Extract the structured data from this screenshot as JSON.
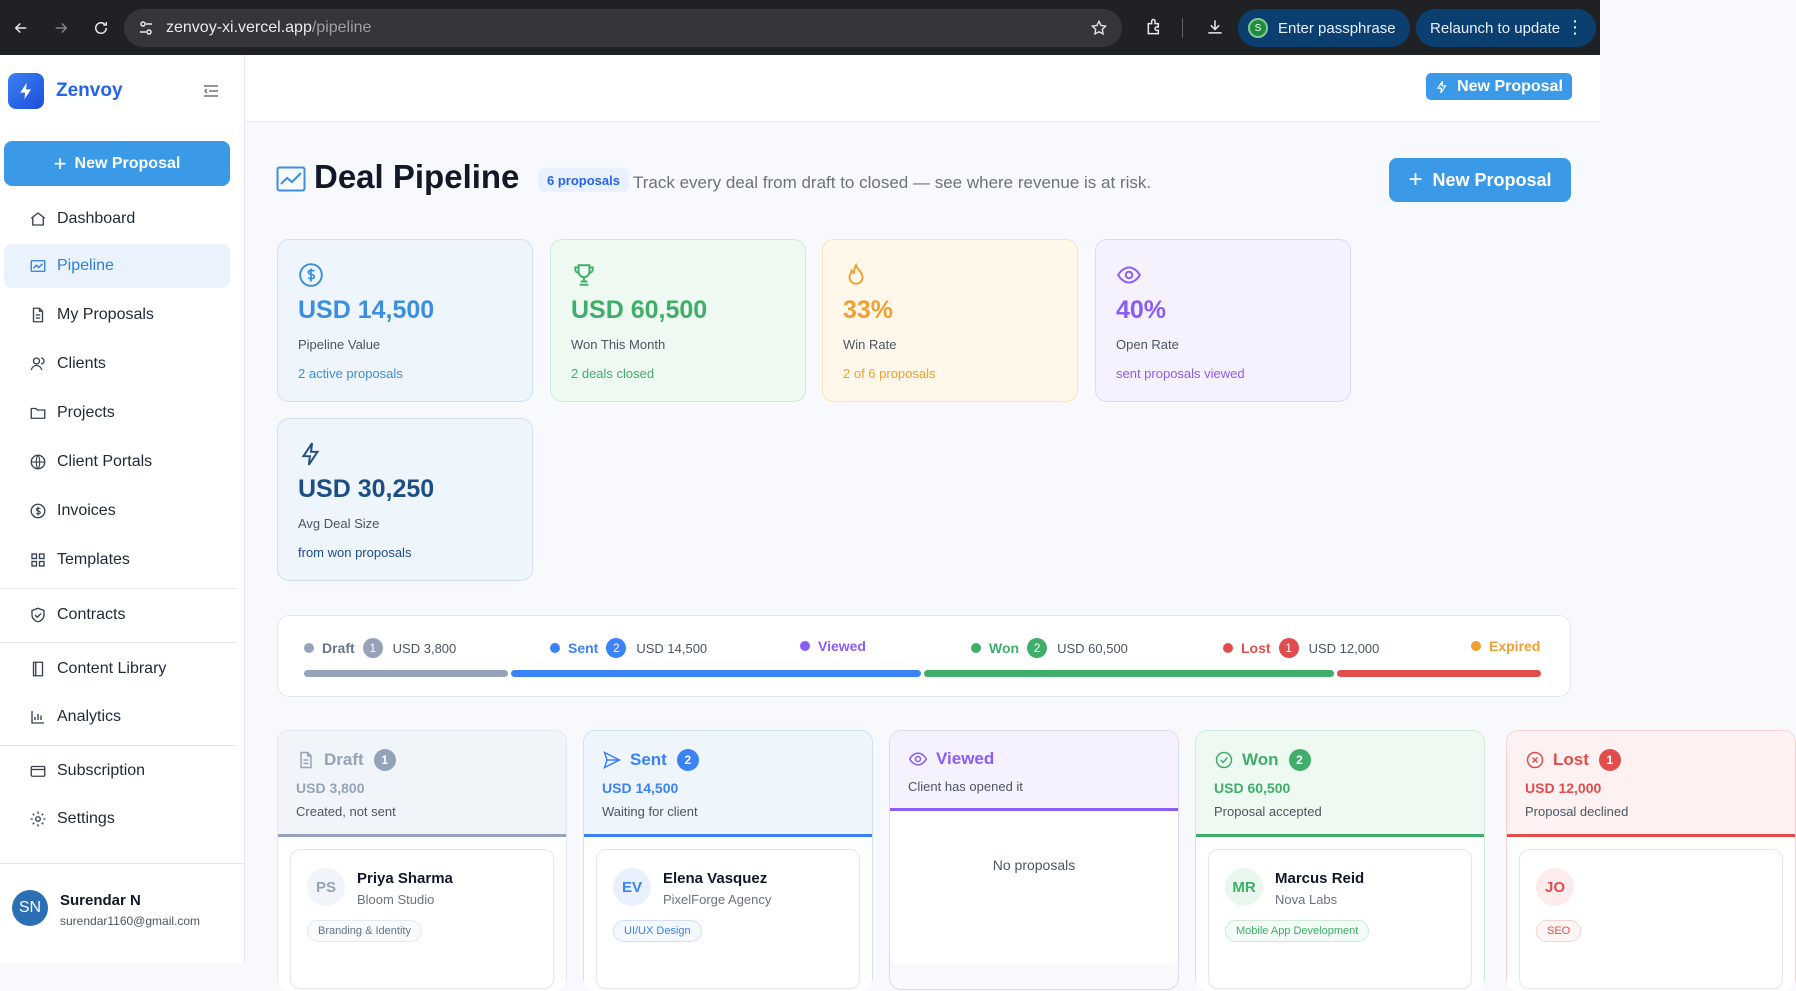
{
  "browser": {
    "url_host": "zenvoy-xi.vercel.app",
    "url_path": "/pipeline",
    "passphrase_label": "Enter passphrase",
    "passphrase_avatar": "S",
    "relaunch_label": "Relaunch to update"
  },
  "brand": {
    "name": "Zenvoy"
  },
  "sidebar": {
    "new_label": "New Proposal",
    "items": [
      {
        "label": "Dashboard",
        "icon": "home-icon"
      },
      {
        "label": "Pipeline",
        "icon": "chart-icon"
      },
      {
        "label": "My Proposals",
        "icon": "document-icon"
      },
      {
        "label": "Clients",
        "icon": "users-icon"
      },
      {
        "label": "Projects",
        "icon": "folder-icon"
      },
      {
        "label": "Client Portals",
        "icon": "globe-icon"
      },
      {
        "label": "Invoices",
        "icon": "dollar-icon"
      },
      {
        "label": "Templates",
        "icon": "grid-icon"
      },
      {
        "label": "Contracts",
        "icon": "shield-icon"
      },
      {
        "label": "Content Library",
        "icon": "book-icon"
      },
      {
        "label": "Analytics",
        "icon": "bar-chart-icon"
      },
      {
        "label": "Subscription",
        "icon": "card-icon"
      },
      {
        "label": "Settings",
        "icon": "gear-icon"
      }
    ]
  },
  "user": {
    "initials": "SN",
    "name": "Surendar N",
    "email": "surendar1160@gmail.com"
  },
  "topbar": {
    "new_label": "New Proposal"
  },
  "header": {
    "title": "Deal Pipeline",
    "badge": "6 proposals",
    "subtitle": "Track every deal from draft to closed — see where revenue is at risk.",
    "new_label": "New Proposal"
  },
  "stats": [
    {
      "value": "USD 14,500",
      "label": "Pipeline Value",
      "sub": "2 active proposals",
      "icon": "dollar-circle-icon",
      "color": "#3b8fe0"
    },
    {
      "value": "USD 60,500",
      "label": "Won This Month",
      "sub": "2 deals closed",
      "icon": "trophy-icon",
      "color": "#3fae6a"
    },
    {
      "value": "33%",
      "label": "Win Rate",
      "sub": "2 of 6 proposals",
      "icon": "flame-icon",
      "color": "#f0a030"
    },
    {
      "value": "40%",
      "label": "Open Rate",
      "sub": "sent proposals viewed",
      "icon": "eye-icon",
      "color": "#8b5cf6"
    },
    {
      "value": "USD 30,250",
      "label": "Avg Deal Size",
      "sub": "from won proposals",
      "icon": "bolt-icon",
      "color": "#1e4e86"
    }
  ],
  "funnel": [
    {
      "name": "Draft",
      "count": "1",
      "amount": "USD 3,800",
      "color": "#94a3b8",
      "share": 0.167
    },
    {
      "name": "Sent",
      "count": "2",
      "amount": "USD 14,500",
      "color": "#3b82f6",
      "share": 0.333
    },
    {
      "name": "Viewed",
      "count": "",
      "amount": "",
      "color": "#8b5cf6",
      "share": 0
    },
    {
      "name": "Won",
      "count": "2",
      "amount": "USD 60,500",
      "color": "#3fae6a",
      "share": 0.333
    },
    {
      "name": "Lost",
      "count": "1",
      "amount": "USD 12,000",
      "color": "#e14d4d",
      "share": 0.167
    },
    {
      "name": "Expired",
      "count": "",
      "amount": "",
      "color": "#f0a030",
      "share": 0
    }
  ],
  "columns": [
    {
      "name": "Draft",
      "count": "1",
      "amount": "USD 3,800",
      "desc": "Created, not sent",
      "icon": "document-icon",
      "card": {
        "initials": "PS",
        "name": "Priya Sharma",
        "org": "Bloom Studio",
        "tag": "Branding & Identity"
      }
    },
    {
      "name": "Sent",
      "count": "2",
      "amount": "USD 14,500",
      "desc": "Waiting for client",
      "icon": "send-icon",
      "card": {
        "initials": "EV",
        "name": "Elena Vasquez",
        "org": "PixelForge Agency",
        "tag": "UI/UX Design"
      }
    },
    {
      "name": "Viewed",
      "count": "",
      "amount": "",
      "desc": "Client has opened it",
      "icon": "eye-icon",
      "empty": "No proposals"
    },
    {
      "name": "Won",
      "count": "2",
      "amount": "USD 60,500",
      "desc": "Proposal accepted",
      "icon": "check-circle-icon",
      "card": {
        "initials": "MR",
        "name": "Marcus Reid",
        "org": "Nova Labs",
        "tag": "Mobile App Development"
      }
    },
    {
      "name": "Lost",
      "count": "1",
      "amount": "USD 12,000",
      "desc": "Proposal declined",
      "icon": "x-circle-icon",
      "card": {
        "initials": "JO",
        "name": "",
        "org": "",
        "tag": "SEO"
      }
    }
  ]
}
